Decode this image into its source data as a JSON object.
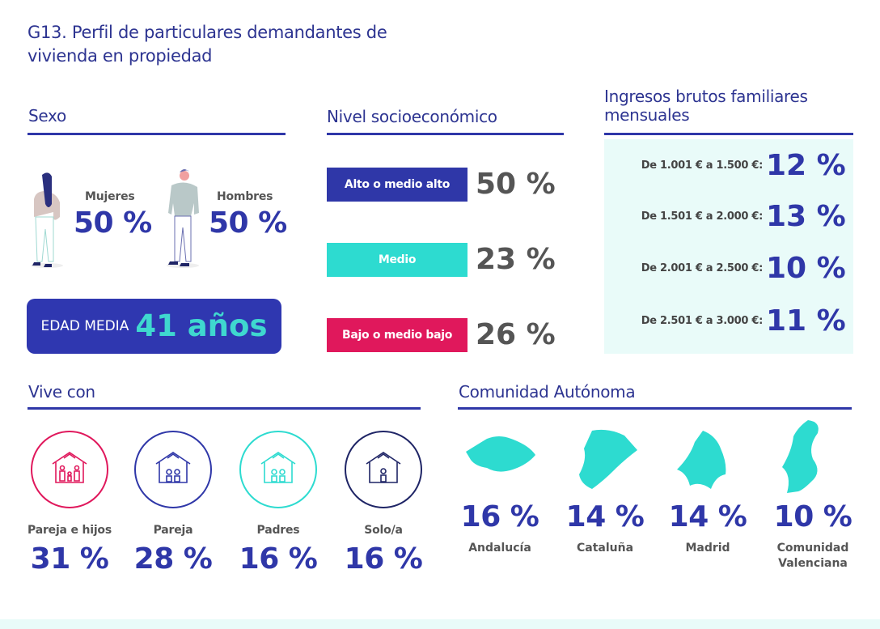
{
  "title_line1": "G13. Perfil de particulares demandantes de",
  "title_line2": "vivienda en propiedad",
  "colors": {
    "blue": "#2f37a8",
    "teal": "#2ddbd0",
    "pink": "#e0185c",
    "navy": "#1f2566",
    "grey": "#555555",
    "panel": "#e9fbf9"
  },
  "sexo": {
    "heading": "Sexo",
    "women_label": "Mujeres",
    "women_value": "50 %",
    "men_label": "Hombres",
    "men_value": "50 %",
    "age_label": "EDAD MEDIA",
    "age_value": "41 años"
  },
  "nivel": {
    "heading": "Nivel socioeconómico",
    "items": [
      {
        "label": "Alto o medio alto",
        "value": "50 %",
        "color": "#2f37a8"
      },
      {
        "label": "Medio",
        "value": "23 %",
        "color": "#2ddbd0"
      },
      {
        "label": "Bajo o medio bajo",
        "value": "26 %",
        "color": "#e0185c"
      }
    ]
  },
  "ingresos": {
    "heading_line1": "Ingresos brutos familiares",
    "heading_line2": "mensuales",
    "items": [
      {
        "label": "De 1.001 € a 1.500 €:",
        "value": "12 %"
      },
      {
        "label": "De 1.501 € a 2.000 €:",
        "value": "13 %"
      },
      {
        "label": "De 2.001 € a 2.500 €:",
        "value": "10 %"
      },
      {
        "label": "De 2.501 € a 3.000 €:",
        "value": "11 %"
      }
    ]
  },
  "vive": {
    "heading": "Vive con",
    "items": [
      {
        "label": "Pareja e hijos",
        "value": "31 %",
        "icon": "house-family-icon",
        "color": "#e0185c"
      },
      {
        "label": "Pareja",
        "value": "28 %",
        "icon": "house-couple-icon",
        "color": "#2f37a8"
      },
      {
        "label": "Padres",
        "value": "16 %",
        "icon": "house-parents-icon",
        "color": "#2ddbd0"
      },
      {
        "label": "Solo/a",
        "value": "16 %",
        "icon": "house-single-icon",
        "color": "#1f2566"
      }
    ]
  },
  "comunidad": {
    "heading": "Comunidad Autónoma",
    "items": [
      {
        "label": "Andalucía",
        "value": "16 %",
        "icon": "andalucia-map-icon"
      },
      {
        "label": "Cataluña",
        "value": "14 %",
        "icon": "cataluna-map-icon"
      },
      {
        "label": "Madrid",
        "value": "14 %",
        "icon": "madrid-map-icon"
      },
      {
        "label": "Comunidad Valenciana",
        "value": "10 %",
        "icon": "valencia-map-icon"
      }
    ]
  }
}
